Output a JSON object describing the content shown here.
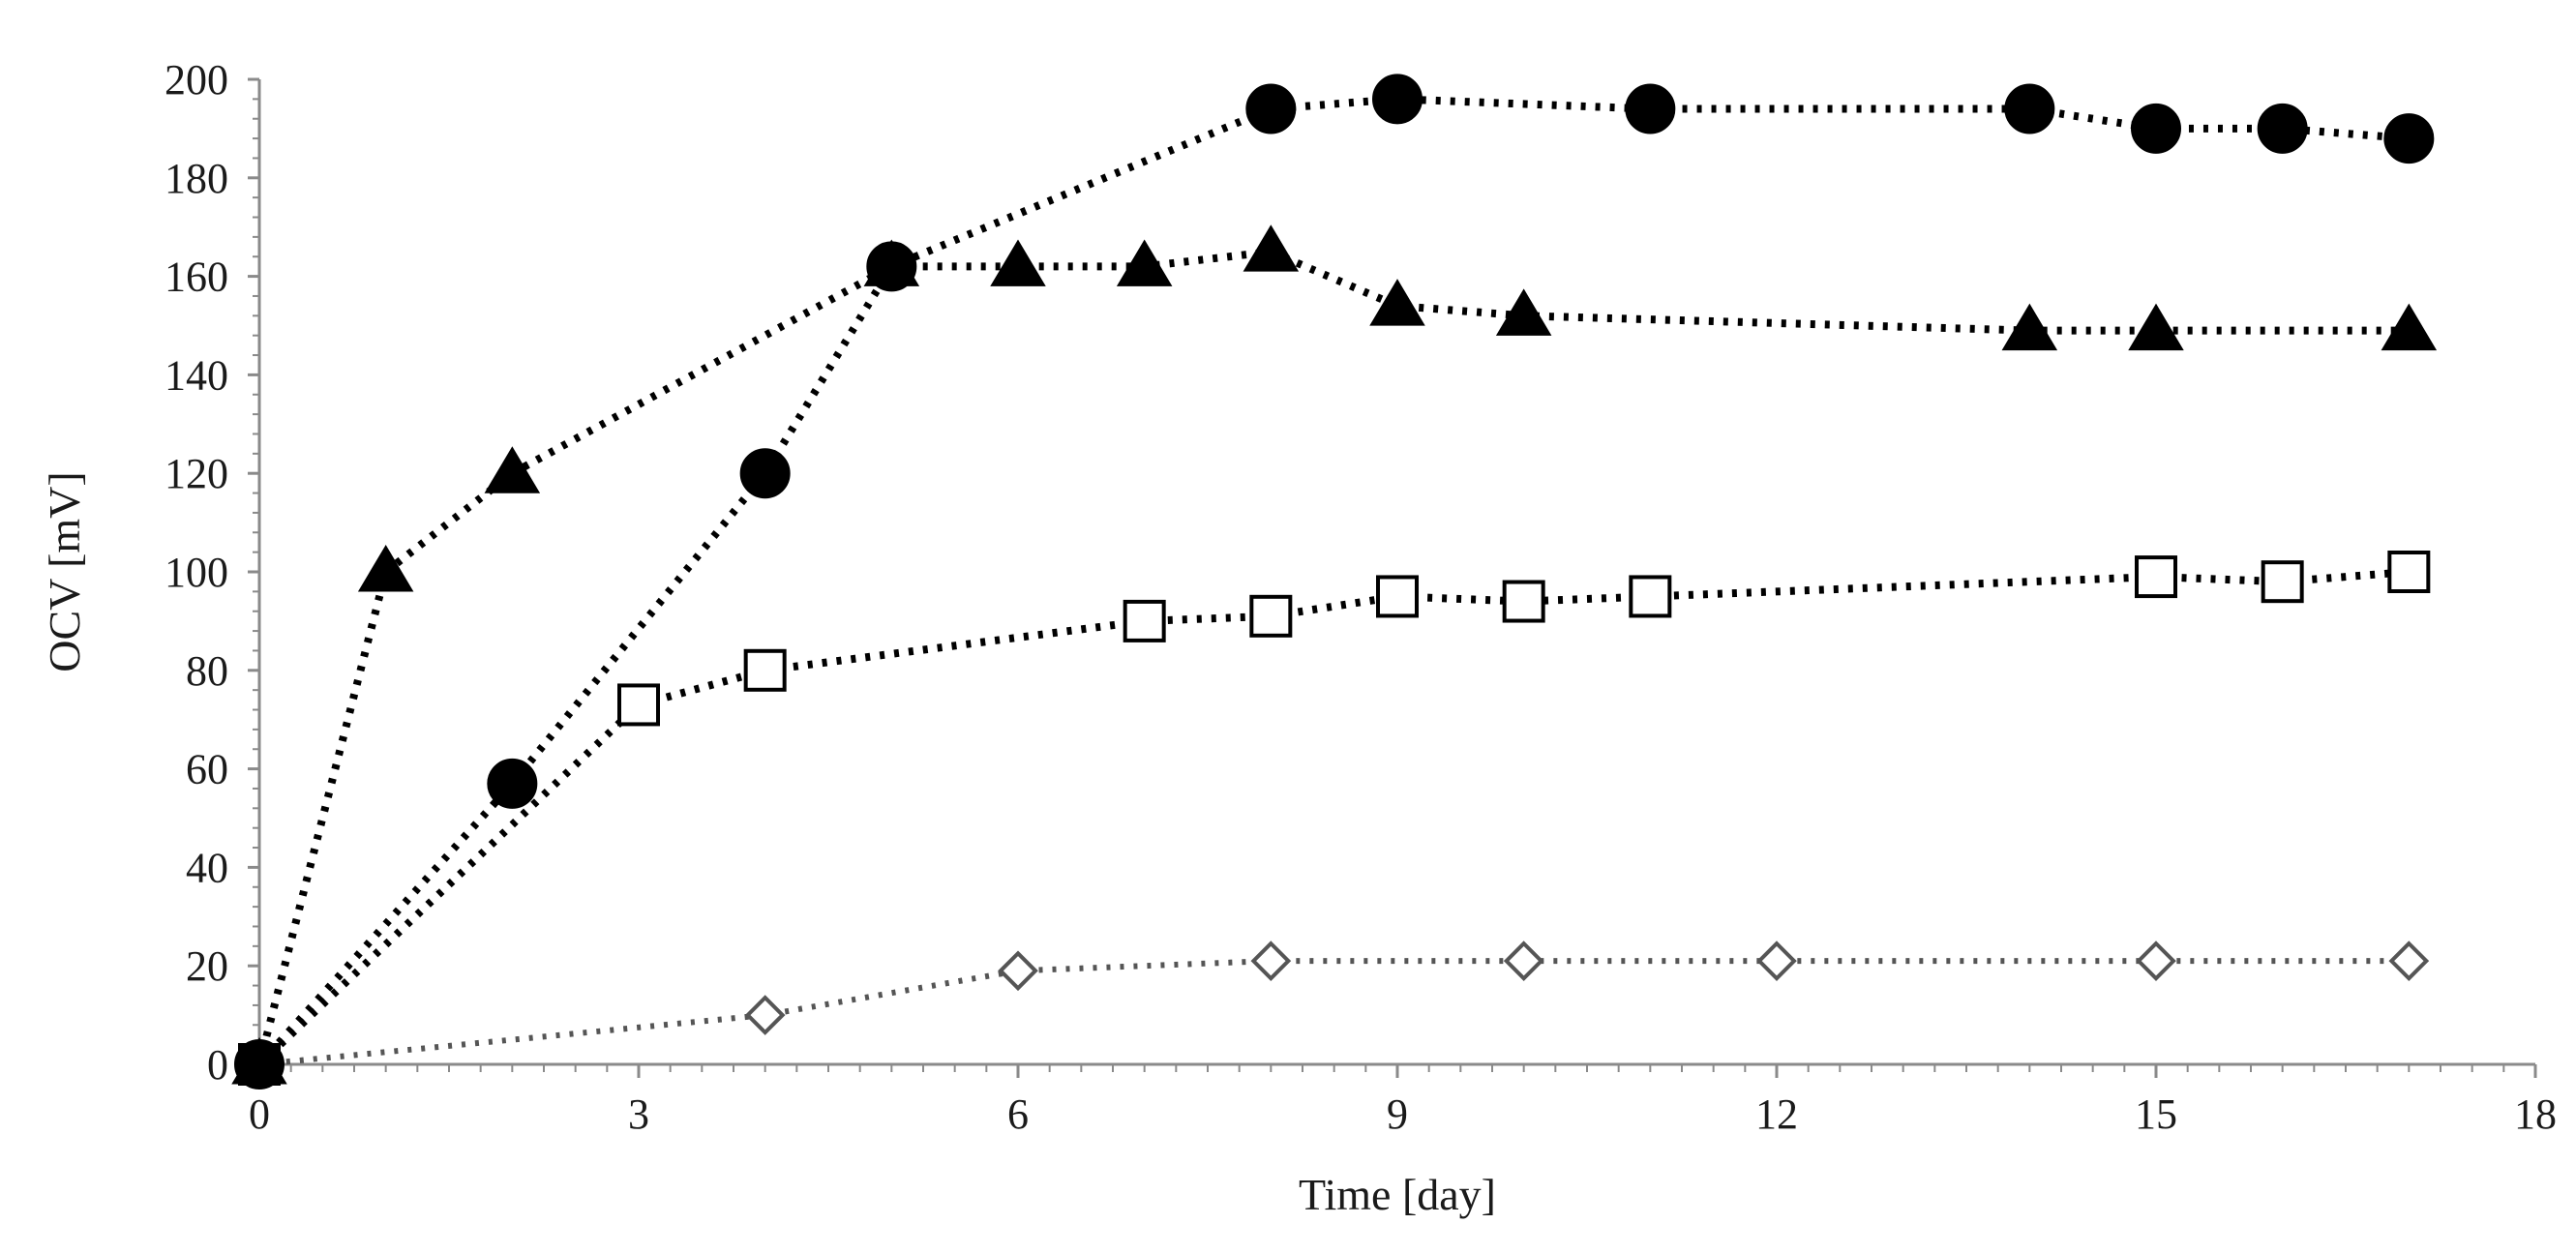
{
  "chart_data": {
    "type": "line",
    "title": "",
    "xlabel": "Time [day]",
    "ylabel": "OCV [mV]",
    "xlim": [
      0,
      18
    ],
    "ylim": [
      0,
      200
    ],
    "xticks": [
      0,
      3,
      6,
      9,
      12,
      15,
      18
    ],
    "yticks": [
      0,
      20,
      40,
      60,
      80,
      100,
      120,
      140,
      160,
      180,
      200
    ],
    "grid": false,
    "series": [
      {
        "name": "filled circles",
        "marker": "circle",
        "filled": true,
        "color": "#000000",
        "line_color": "#000000",
        "line_style": "dotted",
        "x": [
          0,
          2,
          4,
          5,
          8,
          9,
          11,
          14,
          15,
          16,
          17
        ],
        "y": [
          0,
          57,
          120,
          162,
          194,
          196,
          194,
          194,
          190,
          190,
          188
        ]
      },
      {
        "name": "filled triangles",
        "marker": "triangle",
        "filled": true,
        "color": "#000000",
        "line_color": "#000000",
        "line_style": "dotted",
        "x": [
          0,
          1,
          2,
          5,
          6,
          7,
          8,
          9,
          10,
          14,
          15,
          17
        ],
        "y": [
          0,
          100,
          120,
          162,
          162,
          162,
          165,
          154,
          152,
          149,
          149,
          149
        ]
      },
      {
        "name": "open squares",
        "marker": "square",
        "filled": false,
        "color": "#000000",
        "line_color": "#000000",
        "line_style": "dotted",
        "x": [
          0,
          3,
          4,
          7,
          8,
          9,
          10,
          11,
          15,
          16,
          17
        ],
        "y": [
          0,
          73,
          80,
          90,
          91,
          95,
          94,
          95,
          99,
          98,
          100
        ]
      },
      {
        "name": "open diamonds",
        "marker": "diamond",
        "filled": false,
        "color": "#555555",
        "line_color": "#555555",
        "line_style": "dotted",
        "x": [
          0,
          4,
          6,
          8,
          10,
          12,
          15,
          17
        ],
        "y": [
          0,
          10,
          19,
          21,
          21,
          21,
          21,
          21
        ]
      }
    ]
  }
}
